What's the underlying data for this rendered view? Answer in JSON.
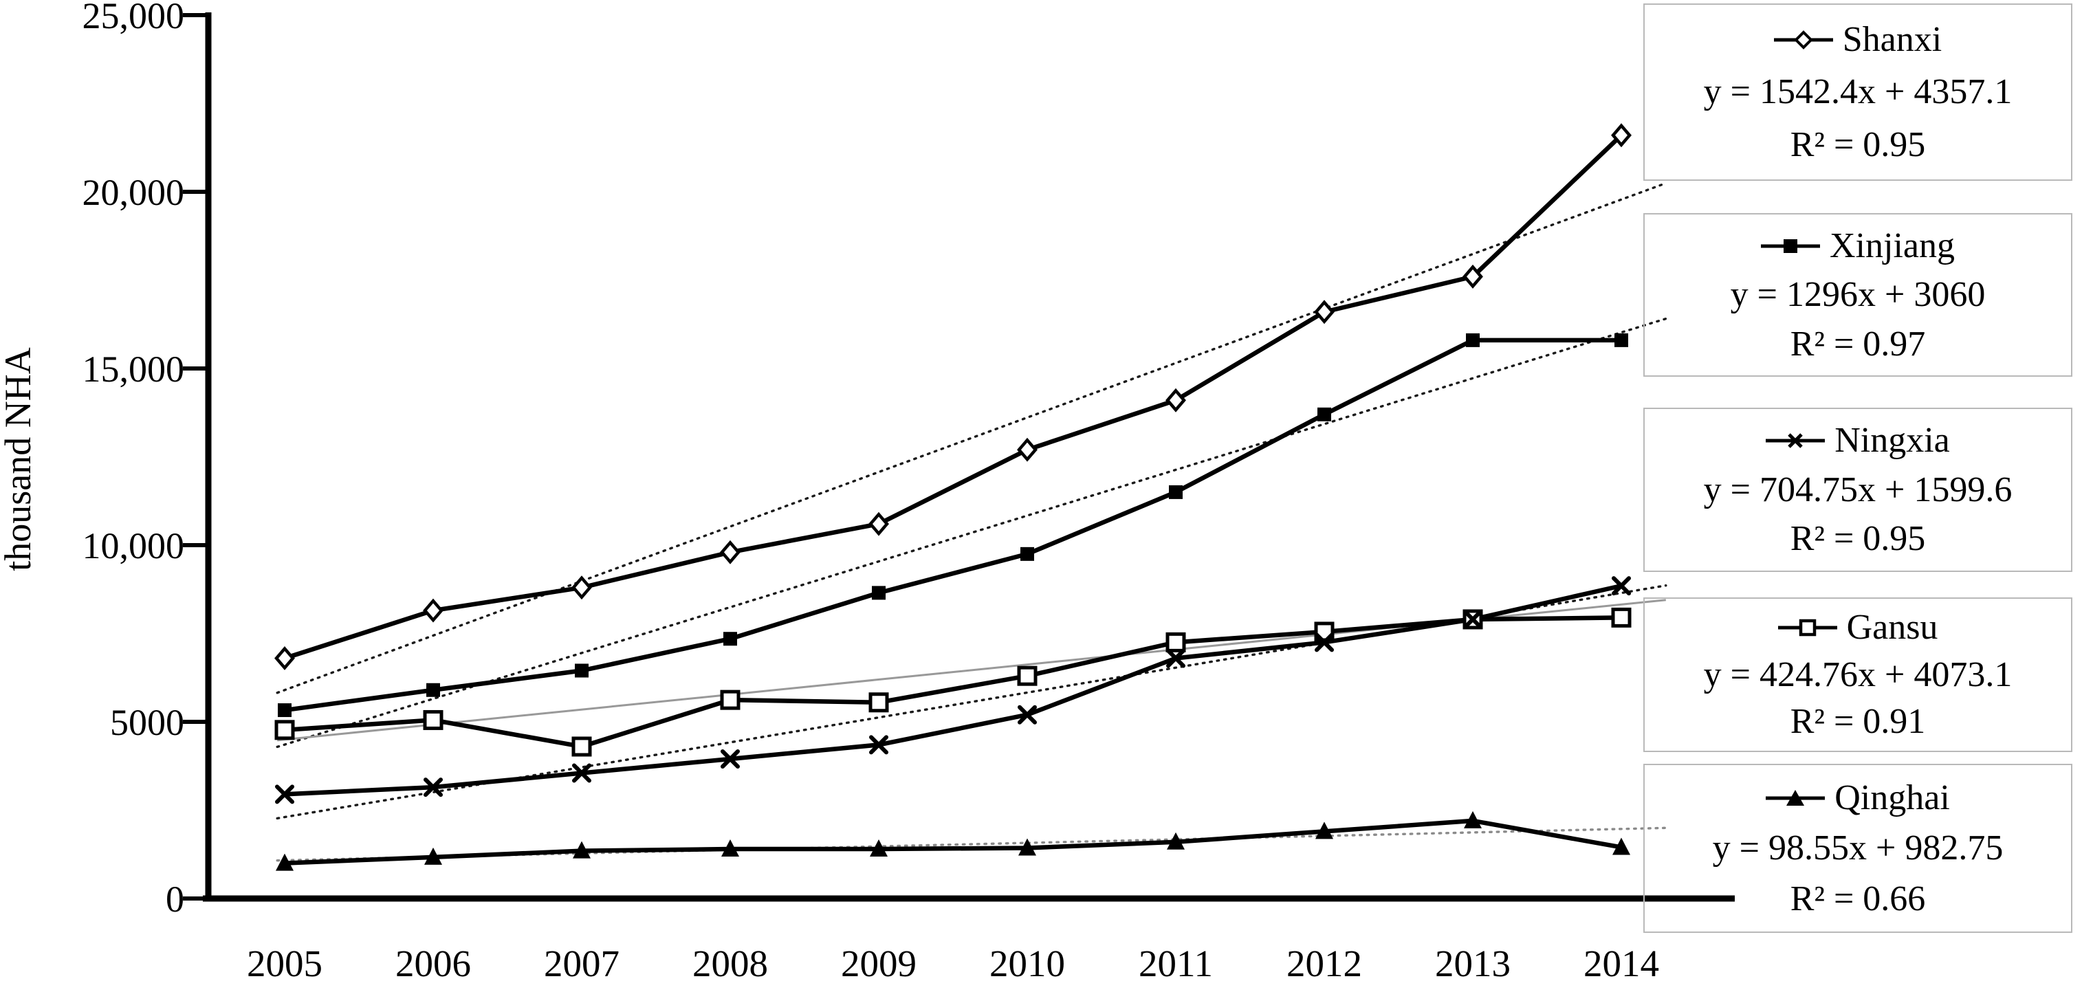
{
  "figure": {
    "background": "#ffffff",
    "ink_color": "#000000",
    "trend_dotted_color": "#1a1a1a",
    "trend_gray_color": "#999999",
    "legend_border_color": "#b9b9b9"
  },
  "axis": {
    "y_title": "thousand NHA",
    "y_ticks": [
      {
        "value": 0,
        "label": "0"
      },
      {
        "value": 5000,
        "label": "5000"
      },
      {
        "value": 10000,
        "label": "10,000"
      },
      {
        "value": 15000,
        "label": "15,000"
      },
      {
        "value": 20000,
        "label": "20,000"
      },
      {
        "value": 25000,
        "label": "25,000"
      }
    ],
    "x_labels": [
      "2005",
      "2006",
      "2007",
      "2008",
      "2009",
      "2010",
      "2011",
      "2012",
      "2013",
      "2014"
    ]
  },
  "chart_data": {
    "type": "line",
    "title": "",
    "xlabel": "",
    "ylabel": "thousand NHA",
    "x": [
      2005,
      2006,
      2007,
      2008,
      2009,
      2010,
      2011,
      2012,
      2013,
      2014
    ],
    "ylim": [
      0,
      25000
    ],
    "grid": false,
    "legend_position": "right",
    "series": [
      {
        "name": "Shanxi",
        "marker": "diamond-open",
        "values": [
          6800,
          8150,
          8800,
          9800,
          10600,
          12700,
          14100,
          16600,
          17600,
          21600
        ],
        "trend": {
          "slope": 1542.4,
          "intercept": 4357.1,
          "equation": "y = 1542.4x + 4357.1",
          "r2": "R² = 0.95",
          "style": "dotted-black"
        }
      },
      {
        "name": "Xinjiang",
        "marker": "square-filled",
        "values": [
          5330,
          5900,
          6450,
          7350,
          8650,
          9750,
          11500,
          13700,
          15800,
          15800
        ],
        "trend": {
          "slope": 1296,
          "intercept": 3060,
          "equation": "y = 1296x + 3060",
          "r2": "R² = 0.97",
          "style": "dotted-black"
        }
      },
      {
        "name": "Ningxia",
        "marker": "x",
        "values": [
          2950,
          3150,
          3550,
          3950,
          4350,
          5200,
          6800,
          7250,
          7900,
          8850
        ],
        "trend": {
          "slope": 704.75,
          "intercept": 1599.6,
          "equation": "y = 704.75x + 1599.6",
          "r2": "R² = 0.95",
          "style": "dotted-black"
        }
      },
      {
        "name": "Gansu",
        "marker": "square-open",
        "values": [
          4770,
          5050,
          4300,
          5620,
          5550,
          6300,
          7250,
          7550,
          7900,
          7950
        ],
        "trend": {
          "slope": 424.76,
          "intercept": 4073.1,
          "equation": "y = 424.76x + 4073.1",
          "r2": "R² = 0.91",
          "style": "solid-gray"
        }
      },
      {
        "name": "Qinghai",
        "marker": "triangle-filled",
        "values": [
          1000,
          1170,
          1350,
          1400,
          1400,
          1430,
          1600,
          1900,
          2200,
          1450
        ],
        "trend": {
          "slope": 98.55,
          "intercept": 982.75,
          "equation": "y = 98.55x + 982.75",
          "r2": "R² = 0.66",
          "style": "dotted-gray"
        }
      }
    ]
  }
}
